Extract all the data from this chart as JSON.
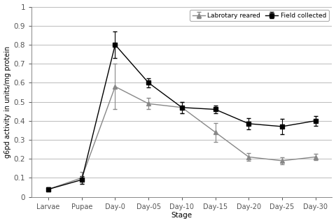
{
  "x_labels": [
    "Larvae",
    "Pupae",
    "Day-0",
    "Day-05",
    "Day-10",
    "Day-15",
    "Day-20",
    "Day-25",
    "Day-30"
  ],
  "lab_reared_y": [
    0.04,
    0.1,
    0.58,
    0.49,
    0.47,
    0.34,
    0.21,
    0.19,
    0.21
  ],
  "lab_reared_err": [
    0.01,
    0.03,
    0.12,
    0.03,
    0.03,
    0.05,
    0.02,
    0.02,
    0.015
  ],
  "field_collected_y": [
    0.04,
    0.09,
    0.8,
    0.6,
    0.47,
    0.46,
    0.385,
    0.37,
    0.4
  ],
  "field_collected_err": [
    0.01,
    0.02,
    0.07,
    0.025,
    0.03,
    0.02,
    0.03,
    0.04,
    0.025
  ],
  "lab_color": "#888888",
  "field_color": "#000000",
  "ylabel": "g6pd activity in units/mg protein",
  "xlabel": "Stage",
  "ylim": [
    0,
    1.0
  ],
  "yticks": [
    0,
    0.1,
    0.2,
    0.3,
    0.4,
    0.5,
    0.6,
    0.7,
    0.8,
    0.9,
    1
  ],
  "legend_labels": [
    "Labrotary reared",
    "Field collected"
  ],
  "bg_color": "#ffffff",
  "grid_color": "#bbbbbb"
}
